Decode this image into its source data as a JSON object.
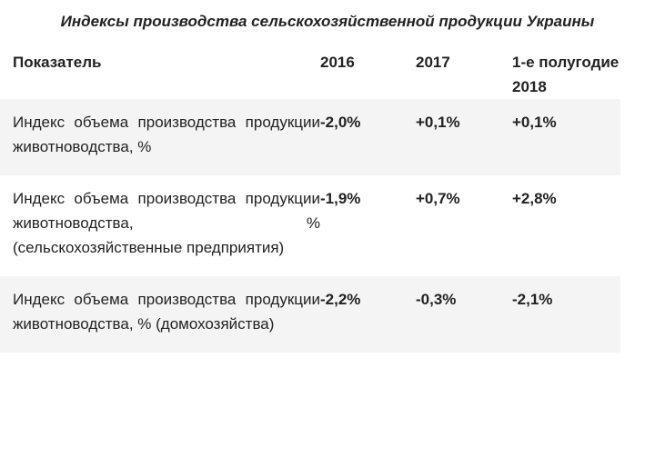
{
  "title": "Индексы производства сельскохозяйственной продукции Украины",
  "table": {
    "headers": [
      "Показатель",
      "2016",
      "2017",
      "1-е полугодие 2018"
    ],
    "rows": [
      {
        "indicator": "Индекс объема производства продукции животноводства, %",
        "v2016": "-2,0%",
        "v2017": "+0,1%",
        "v2018h1": "+0,1%"
      },
      {
        "indicator": "Индекс объема производства продукции животноводства, % (сельскохозяйственные предприятия)",
        "v2016": "-1,9%",
        "v2017": "+0,7%",
        "v2018h1": "+2,8%"
      },
      {
        "indicator": "Индекс объема производства продукции животноводства, % (домохозяйства)",
        "v2016": "-2,2%",
        "v2017": "-0,3%",
        "v2018h1": "-2,1%"
      }
    ]
  },
  "colors": {
    "row_shade": "#f4f4f4",
    "text": "#222222"
  }
}
